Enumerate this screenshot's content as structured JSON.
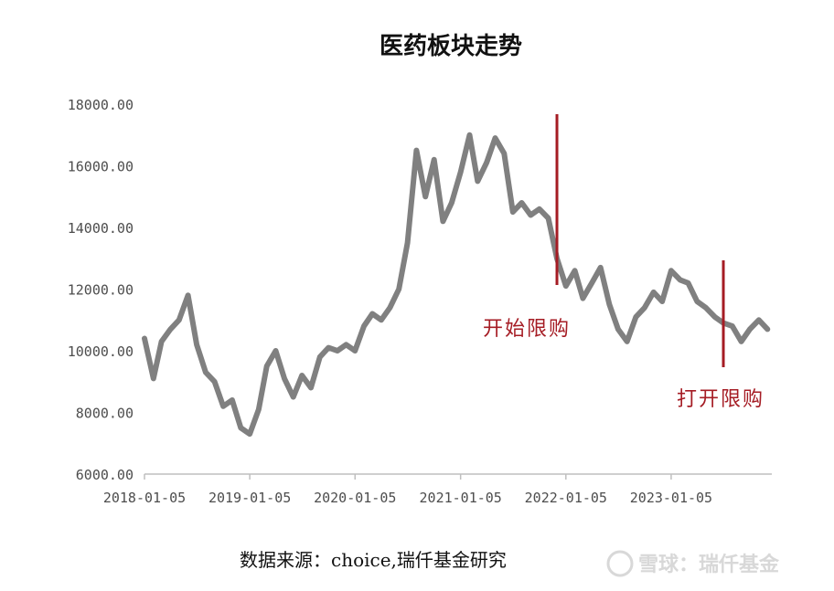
{
  "chart_data": {
    "type": "line",
    "title": "医药板块走势",
    "xlabel": "",
    "ylabel": "",
    "ylim": [
      6000,
      18000
    ],
    "y_ticks": [
      "18000.00",
      "16000.00",
      "14000.00",
      "12000.00",
      "10000.00",
      "8000.00",
      "6000.00"
    ],
    "x_ticks": [
      "2018-01-05",
      "2019-01-05",
      "2020-01-05",
      "2021-01-05",
      "2022-01-05",
      "2023-01-05"
    ],
    "grid": false,
    "legend": "none",
    "line_color": "#808080",
    "series": [
      {
        "x": [
          "2018-01-05",
          "2018-02-05",
          "2018-03-05",
          "2018-04-05",
          "2018-05-05",
          "2018-06-05",
          "2018-07-05",
          "2018-08-05",
          "2018-09-05",
          "2018-10-05",
          "2018-11-05",
          "2018-12-05",
          "2019-01-05",
          "2019-02-05",
          "2019-03-05",
          "2019-04-05",
          "2019-05-05",
          "2019-06-05",
          "2019-07-05",
          "2019-08-05",
          "2019-09-05",
          "2019-10-05",
          "2019-11-05",
          "2019-12-05",
          "2020-01-05",
          "2020-02-05",
          "2020-03-05",
          "2020-04-05",
          "2020-05-05",
          "2020-06-05",
          "2020-07-05",
          "2020-08-05",
          "2020-09-05",
          "2020-10-05",
          "2020-11-05",
          "2020-12-05",
          "2021-01-05",
          "2021-02-05",
          "2021-03-05",
          "2021-04-05",
          "2021-05-05",
          "2021-06-05",
          "2021-07-05",
          "2021-08-05",
          "2021-09-05",
          "2021-10-05",
          "2021-11-05",
          "2021-12-05",
          "2022-01-05",
          "2022-02-05",
          "2022-03-05",
          "2022-04-05",
          "2022-05-05",
          "2022-06-05",
          "2022-07-05",
          "2022-08-05",
          "2022-09-05",
          "2022-10-05",
          "2022-11-05",
          "2022-12-05",
          "2023-01-05",
          "2023-02-05",
          "2023-03-05",
          "2023-04-05",
          "2023-05-05",
          "2023-06-05",
          "2023-07-05",
          "2023-08-05",
          "2023-09-05",
          "2023-10-05",
          "2023-11-05",
          "2023-12-05"
        ],
        "values": [
          10400,
          9100,
          10300,
          10700,
          11000,
          11800,
          10200,
          9300,
          9000,
          8200,
          8400,
          7500,
          7300,
          8100,
          9500,
          10000,
          9100,
          8500,
          9200,
          8800,
          9800,
          10100,
          10000,
          10200,
          10000,
          10800,
          11200,
          11000,
          11400,
          12000,
          13500,
          16500,
          15000,
          16200,
          14200,
          14800,
          15800,
          17000,
          15500,
          16100,
          16900,
          16400,
          14500,
          14800,
          14400,
          14600,
          14300,
          13000,
          12100,
          12600,
          11700,
          12200,
          12700,
          11500,
          10700,
          10300,
          11100,
          11400,
          11900,
          11600,
          12600,
          12300,
          12200,
          11600,
          11400,
          11100,
          10900,
          10800,
          10300,
          10700,
          11000,
          10700
        ]
      }
    ],
    "annotations": [
      {
        "text": "开始限购",
        "x": "2021-12-05",
        "color": "#a51c24"
      },
      {
        "text": "打开限购",
        "x": "2023-07-05",
        "color": "#a51c24"
      }
    ]
  },
  "source_note": "数据来源：choice,瑞仟基金研究",
  "watermark": "雪球：瑞仟基金"
}
